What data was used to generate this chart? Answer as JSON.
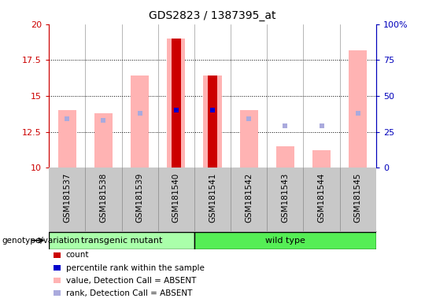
{
  "title": "GDS2823 / 1387395_at",
  "samples": [
    "GSM181537",
    "GSM181538",
    "GSM181539",
    "GSM181540",
    "GSM181541",
    "GSM181542",
    "GSM181543",
    "GSM181544",
    "GSM181545"
  ],
  "groups": [
    "transgenic mutant",
    "transgenic mutant",
    "transgenic mutant",
    "transgenic mutant",
    "wild type",
    "wild type",
    "wild type",
    "wild type",
    "wild type"
  ],
  "ylim": [
    10,
    20
  ],
  "yticks": [
    10,
    12.5,
    15,
    17.5,
    20
  ],
  "ytick_labels": [
    "10",
    "12.5",
    "15",
    "17.5",
    "20"
  ],
  "right_yticks": [
    0,
    25,
    50,
    75,
    100
  ],
  "right_ytick_labels": [
    "0",
    "25",
    "50",
    "75",
    "100%"
  ],
  "value_absent_bottom": [
    10,
    10,
    10,
    10,
    10,
    10,
    10,
    10,
    10
  ],
  "value_absent_top": [
    14.0,
    13.8,
    16.4,
    19.0,
    16.4,
    14.0,
    11.5,
    11.2,
    18.2
  ],
  "count_top": [
    null,
    null,
    null,
    19.0,
    16.4,
    null,
    null,
    null,
    null
  ],
  "rank_absent_values": [
    13.4,
    13.3,
    13.8,
    null,
    null,
    13.4,
    12.9,
    12.9,
    13.8
  ],
  "percentile_rank_values": [
    null,
    null,
    null,
    14.0,
    14.0,
    null,
    null,
    null,
    null
  ],
  "absent_value_color": "#FFB3B3",
  "count_color": "#CC0000",
  "percentile_rank_color": "#0000CC",
  "rank_absent_color": "#AAAADD",
  "left_axis_color": "#CC0000",
  "right_axis_color": "#0000BB",
  "gray_bg": "#C8C8C8",
  "group_label": "genotype/variation",
  "group_transgenic_color": "#AAFFAA",
  "group_wildtype_color": "#55EE55",
  "legend_items": [
    {
      "color": "#CC0000",
      "label": "count"
    },
    {
      "color": "#0000CC",
      "label": "percentile rank within the sample"
    },
    {
      "color": "#FFB3B3",
      "label": "value, Detection Call = ABSENT"
    },
    {
      "color": "#AAAADD",
      "label": "rank, Detection Call = ABSENT"
    }
  ]
}
